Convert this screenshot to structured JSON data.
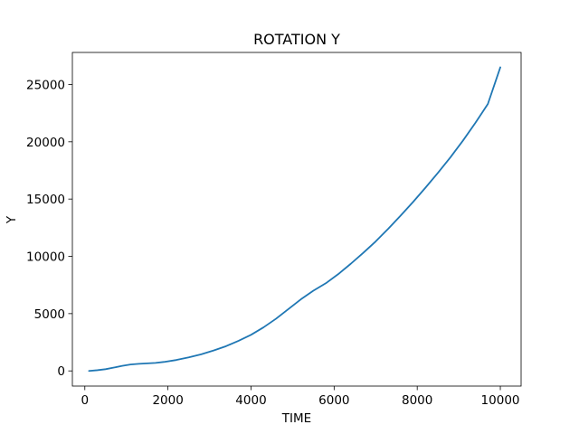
{
  "chart_data": {
    "type": "line",
    "title": "ROTATION Y",
    "xlabel": "TIME",
    "ylabel": "Y",
    "xlim": [
      -300,
      10500
    ],
    "ylim": [
      -1325,
      27800
    ],
    "xticks": [
      0,
      2000,
      4000,
      6000,
      8000,
      10000
    ],
    "yticks": [
      0,
      5000,
      10000,
      15000,
      20000,
      25000
    ],
    "grid": false,
    "series": [
      {
        "color": "#1f77b4",
        "x": [
          100,
          300,
          500,
          700,
          900,
          1100,
          1300,
          1500,
          1700,
          1900,
          2200,
          2500,
          2800,
          3100,
          3400,
          3700,
          4000,
          4300,
          4600,
          4900,
          5200,
          5500,
          5800,
          6100,
          6400,
          6700,
          7000,
          7300,
          7600,
          7900,
          8200,
          8500,
          8800,
          9100,
          9400,
          9700,
          10000
        ],
        "y": [
          0,
          60,
          150,
          290,
          440,
          560,
          620,
          660,
          700,
          780,
          950,
          1180,
          1450,
          1780,
          2160,
          2630,
          3150,
          3800,
          4550,
          5400,
          6250,
          7000,
          7650,
          8450,
          9350,
          10300,
          11300,
          12400,
          13550,
          14750,
          16000,
          17300,
          18650,
          20100,
          21650,
          23300,
          26500
        ]
      }
    ]
  }
}
